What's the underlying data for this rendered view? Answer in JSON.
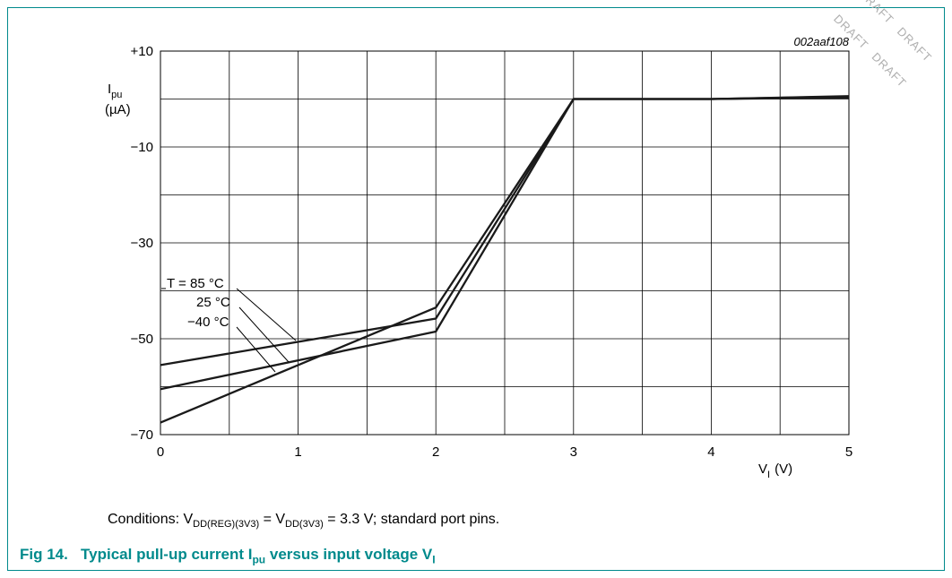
{
  "figure_id": "002aaf108",
  "watermark": "DRAFT",
  "conditions": {
    "prefix": "Conditions: V",
    "sub1": "DD(REG)(3V3)",
    "mid": " = V",
    "sub2": "DD(3V3)",
    "suffix": " = 3.3 V; standard port pins."
  },
  "caption": {
    "number": "Fig 14.",
    "text_a": "Typical pull-up current I",
    "sub_a": "pu",
    "text_b": " versus input voltage V",
    "sub_b": "I"
  },
  "chart_data": {
    "type": "line",
    "title": "",
    "ylabel": {
      "symbol": "I",
      "sub": "pu",
      "unit": "(µA)"
    },
    "xlabel": {
      "symbol": "V",
      "sub": "I",
      "unit": "(V)"
    },
    "xlim": [
      0,
      5
    ],
    "ylim": [
      -70,
      10
    ],
    "x_tick_labels": [
      "0",
      "1",
      "2",
      "3",
      "4",
      "5"
    ],
    "y_tick_labels": [
      "+10",
      "−10",
      "−30",
      "−50",
      "−70"
    ],
    "grid": true,
    "line_color": "#1a1a1a",
    "series": [
      {
        "name": "T = 85 °C",
        "x": [
          0,
          2,
          3,
          4,
          5
        ],
        "y": [
          -55.5,
          -45.8,
          0,
          0,
          0.5
        ]
      },
      {
        "name": "25 °C",
        "x": [
          0,
          2,
          3,
          4,
          5
        ],
        "y": [
          -60.5,
          -48.5,
          0,
          0,
          0.3
        ]
      },
      {
        "name": "−40 °C",
        "x": [
          0,
          2,
          3,
          4,
          5
        ],
        "y": [
          -67.5,
          -43.5,
          0,
          0,
          0.6
        ]
      }
    ]
  }
}
